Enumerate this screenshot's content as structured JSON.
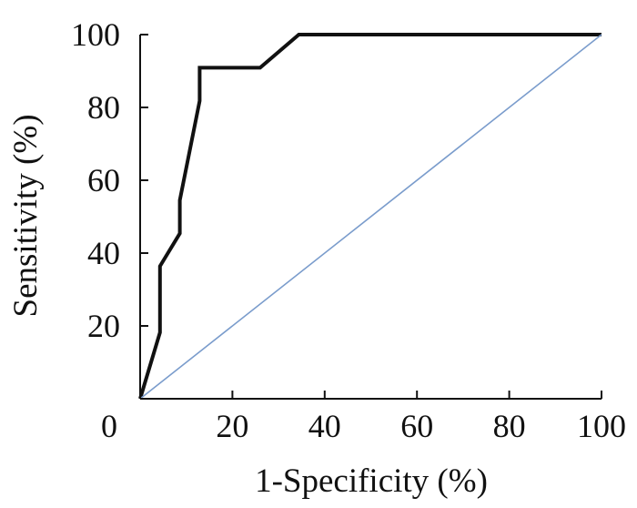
{
  "chart_data": {
    "type": "line",
    "xlabel": "1-Specificity (%)",
    "ylabel": "Sensitivity (%)",
    "xlim": [
      0,
      100
    ],
    "ylim": [
      0,
      100
    ],
    "x_ticks": [
      "0",
      "20",
      "40",
      "60",
      "80",
      "100"
    ],
    "y_ticks": [
      "20",
      "40",
      "60",
      "80",
      "100"
    ],
    "grid": false,
    "legend": "none",
    "series": [
      {
        "color": "#111111",
        "x": [
          0,
          4.3,
          4.3,
          8.6,
          8.6,
          12.9,
          12.9,
          26,
          34.4,
          100
        ],
        "y": [
          0,
          18.2,
          36.4,
          45.4,
          54.5,
          81.8,
          90.9,
          90.9,
          100,
          100
        ]
      },
      {
        "color": "#7a9ccc",
        "x": [
          0,
          100
        ],
        "y": [
          0,
          100
        ]
      }
    ]
  }
}
